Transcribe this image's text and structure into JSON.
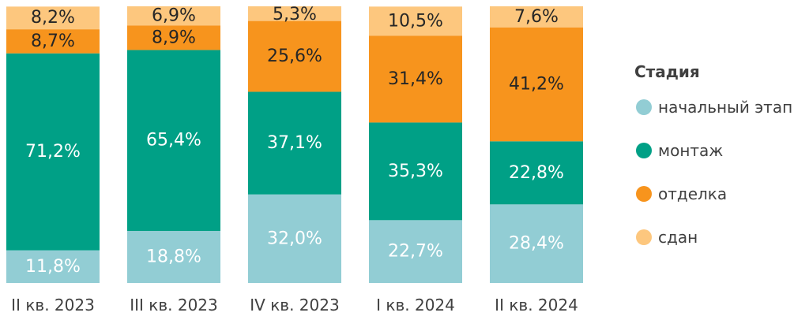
{
  "chart_data": {
    "type": "bar",
    "stacked": true,
    "normalized": true,
    "categories": [
      "II кв. 2023",
      "III кв. 2023",
      "IV кв. 2023",
      "I кв. 2024",
      "II кв. 2024"
    ],
    "series": [
      {
        "name": "начальный этап",
        "color": "#92CDD4",
        "label_color": "#FFFFFF",
        "values": [
          11.8,
          18.8,
          32.0,
          22.7,
          28.4
        ],
        "labels": [
          "11,8%",
          "18,8%",
          "32,0%",
          "22,7%",
          "28,4%"
        ]
      },
      {
        "name": "монтаж",
        "color": "#00A086",
        "label_color": "#FFFFFF",
        "values": [
          71.2,
          65.4,
          37.1,
          35.3,
          22.8
        ],
        "labels": [
          "71,2%",
          "65,4%",
          "37,1%",
          "35,3%",
          "22,8%"
        ]
      },
      {
        "name": "отделка",
        "color": "#F7941D",
        "label_color": "#262626",
        "values": [
          8.7,
          8.9,
          25.6,
          31.4,
          41.2
        ],
        "labels": [
          "8,7%",
          "8,9%",
          "25,6%",
          "31,4%",
          "41,2%"
        ]
      },
      {
        "name": "сдан",
        "color": "#FDC77E",
        "label_color": "#262626",
        "values": [
          8.2,
          6.9,
          5.3,
          10.5,
          7.6
        ],
        "labels": [
          "8,2%",
          "6,9%",
          "5,3%",
          "10,5%",
          "7,6%"
        ]
      }
    ],
    "ylim": [
      0,
      100
    ],
    "legend": {
      "title": "Стадия",
      "position": "right"
    },
    "grid": false
  }
}
